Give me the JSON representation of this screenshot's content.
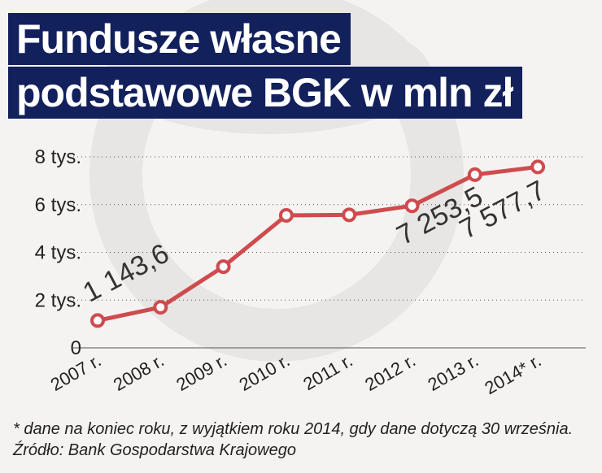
{
  "title_lines": [
    "Fundusze własne",
    "podstawowe BGK w mln zł"
  ],
  "footnote": "* dane na koniec roku, z wyjątkiem roku 2014, gdy dane dotyczą 30 września. Źródło: Bank Gospodarstwa Krajowego",
  "colors": {
    "line": "#cf4b4e",
    "marker_fill": "#ffffff",
    "title_bg": "#12205c",
    "title_text": "#ffffff",
    "background": "#f4f3f1",
    "grid": "#555555"
  },
  "chart_data": {
    "type": "line",
    "title": "Fundusze własne podstawowe BGK w mln zł",
    "categories": [
      "2007 r.",
      "2008 r.",
      "2009 r.",
      "2010 r.",
      "2011 r.",
      "2012 r.",
      "2013 r.",
      "2014* r."
    ],
    "values": [
      1143.6,
      1700,
      3400,
      5550,
      5570,
      5950,
      7253.5,
      7577.7
    ],
    "ylim": [
      0,
      8000
    ],
    "yticks": [
      {
        "value": 0,
        "label": "0"
      },
      {
        "value": 2000,
        "label": "2 tys."
      },
      {
        "value": 4000,
        "label": "4 tys."
      },
      {
        "value": 6000,
        "label": "6 tys."
      },
      {
        "value": 8000,
        "label": "8 tys."
      }
    ],
    "grid": true,
    "data_labels": [
      {
        "index": 0,
        "text": "1 143,6"
      },
      {
        "index": 6,
        "text": "7 253,5"
      },
      {
        "index": 7,
        "text": "7 577,7"
      }
    ]
  }
}
